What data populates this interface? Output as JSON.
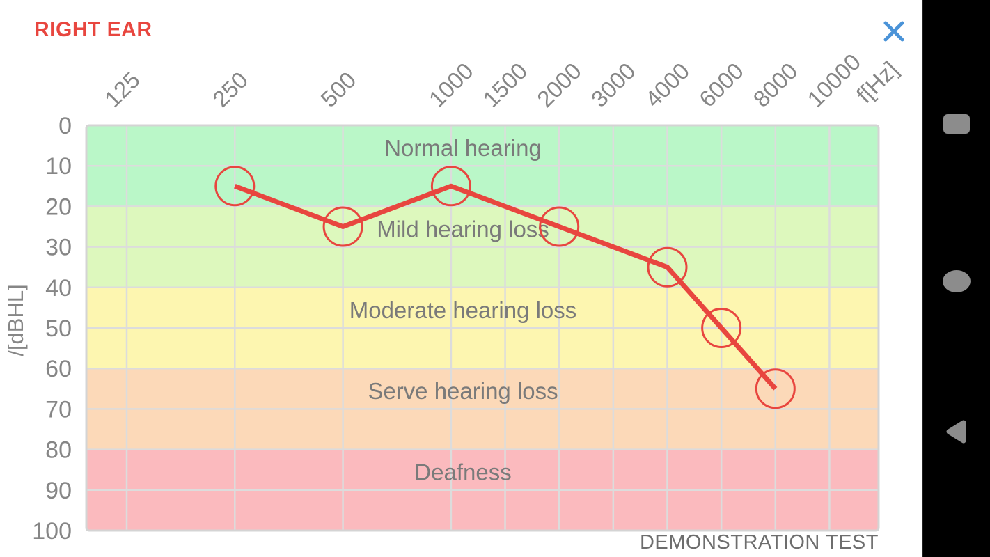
{
  "header": {
    "title": "RIGHT EAR",
    "title_color": "#e8463f",
    "close_icon_color": "#4a93d8"
  },
  "footer": {
    "note": "DEMONSTRATION TEST"
  },
  "nav_bar": {
    "background": "#000000",
    "icon_color": "#8c8c8c",
    "icons": [
      "recents-square",
      "home-circle",
      "back-triangle"
    ]
  },
  "chart_data": {
    "type": "line",
    "title": "RIGHT EAR audiogram",
    "x_axis": {
      "label": "f[Hz]",
      "position": "top",
      "tick_rotation_deg": -45,
      "ticks": [
        "125",
        "250",
        "500",
        "1000",
        "1500",
        "2000",
        "3000",
        "4000",
        "6000",
        "8000",
        "10000"
      ]
    },
    "y_axis": {
      "label": "/[dBHL]",
      "min": 0,
      "max": 100,
      "inverted": true,
      "ticks": [
        "0",
        "10",
        "20",
        "30",
        "40",
        "50",
        "60",
        "70",
        "80",
        "90",
        "100"
      ]
    },
    "bands": [
      {
        "label": "Normal hearing",
        "from_db": 0,
        "to_db": 20,
        "color": "#baf7c8"
      },
      {
        "label": "Mild hearing loss",
        "from_db": 20,
        "to_db": 40,
        "color": "#ddf8bd"
      },
      {
        "label": "Moderate hearing loss",
        "from_db": 40,
        "to_db": 60,
        "color": "#fdf6b0"
      },
      {
        "label": "Serve hearing loss",
        "from_db": 60,
        "to_db": 80,
        "color": "#fcd9b8"
      },
      {
        "label": "Deafness",
        "from_db": 80,
        "to_db": 100,
        "color": "#fbbabe"
      }
    ],
    "series": [
      {
        "name": "right-ear-thresholds",
        "color": "#e8463f",
        "marker": "open-circle",
        "points": [
          {
            "f": "250",
            "db": 15
          },
          {
            "f": "500",
            "db": 25
          },
          {
            "f": "1000",
            "db": 15
          },
          {
            "f": "2000",
            "db": 25
          },
          {
            "f": "4000",
            "db": 35
          },
          {
            "f": "6000",
            "db": 50
          },
          {
            "f": "8000",
            "db": 65
          }
        ]
      }
    ],
    "grid": true,
    "grid_color": "#dcdcdc",
    "plot_border_color": "#d4d4d4",
    "band_label_color": "#7a7a7a",
    "tick_label_color": "#868686"
  }
}
